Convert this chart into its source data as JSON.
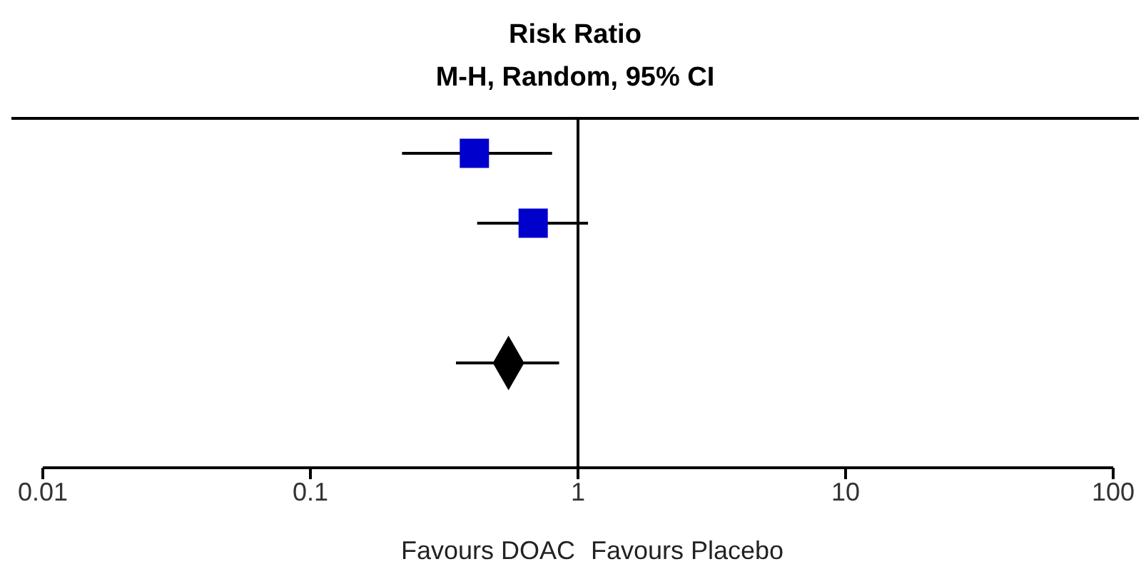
{
  "chart_data": {
    "type": "scatter",
    "title": "Risk Ratio",
    "subtitle": "M-H, Random, 95% CI",
    "orientation": "horizontal",
    "categories": [
      null,
      null,
      null,
      null,
      null
    ],
    "series": [
      {
        "color": "#0000cc",
        "marker": "square",
        "values": [
          0.41,
          0.68,
          null,
          null,
          null
        ],
        "errors": [
          [
            0.22,
            0.8
          ],
          [
            0.42,
            1.09
          ],
          null,
          null,
          null
        ]
      },
      {
        "color": "#000000",
        "marker": "diamond",
        "values": [
          null,
          null,
          null,
          0.55,
          null
        ],
        "errors": [
          null,
          null,
          null,
          [
            0.35,
            0.85
          ],
          null
        ]
      }
    ],
    "xlim": [
      0.01,
      100
    ],
    "xticks": [
      0.01,
      0.1,
      1,
      10,
      100
    ],
    "log": "x",
    "ref_lines": [
      {
        "axis": "x",
        "value": 1,
        "color": "#000000"
      }
    ],
    "annotations": [
      "Favours DOAC",
      "Favours Placebo"
    ],
    "tick_labels": "x"
  }
}
